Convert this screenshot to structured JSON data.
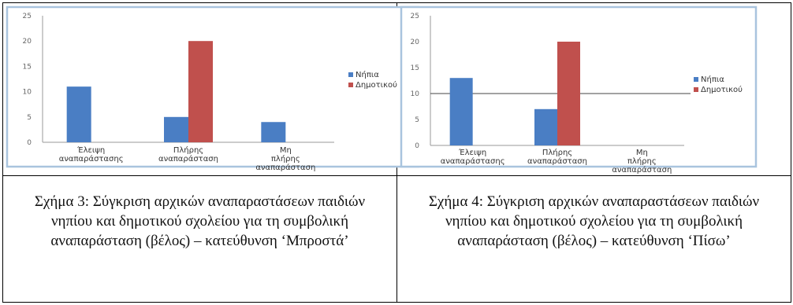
{
  "chart_data": [
    {
      "type": "bar",
      "categories": [
        "Έλειψη αναπαράστασης",
        "Πλήρης αναπαράσταση",
        "Μη πλήρης αναπαράσταση"
      ],
      "series": [
        {
          "name": "Νήπια",
          "values": [
            11,
            5,
            4
          ],
          "color": "#4a7ec4"
        },
        {
          "name": "Δημοτικού",
          "values": [
            0,
            20,
            0
          ],
          "color": "#c0504d"
        }
      ],
      "yticks": [
        0,
        5,
        10,
        15,
        20,
        25
      ],
      "ylim": [
        0,
        25
      ],
      "grid": false,
      "legend": "right"
    },
    {
      "type": "bar",
      "categories": [
        "Έλειψη αναπαράστασης",
        "Πλήρης αναπαράσταση",
        "Μη πλήρης αναπαράσταση"
      ],
      "series": [
        {
          "name": "Νήπια",
          "values": [
            13,
            7,
            0
          ],
          "color": "#4a7ec4"
        },
        {
          "name": "Δημοτικού",
          "values": [
            0,
            20,
            0
          ],
          "color": "#c0504d"
        }
      ],
      "yticks": [
        0,
        5,
        10,
        15,
        20,
        25
      ],
      "ylim": [
        0,
        25
      ],
      "reference_line": 10,
      "grid": false,
      "legend": "right"
    }
  ],
  "captions": [
    "Σχήμα 3: Σύγκριση αρχικών αναπαραστάσεων παιδιών νηπίου και δημοτικού σχολείου για τη συμβολική αναπαράσταση (βέλος) – κατεύθυνση ‘Μπροστά’",
    "Σχήμα 4: Σύγκριση αρχικών αναπαραστάσεων παιδιών νηπίου και δημοτικού σχολείου για τη συμβολική αναπαράσταση (βέλος) – κατεύθυνση ‘Πίσω’"
  ]
}
